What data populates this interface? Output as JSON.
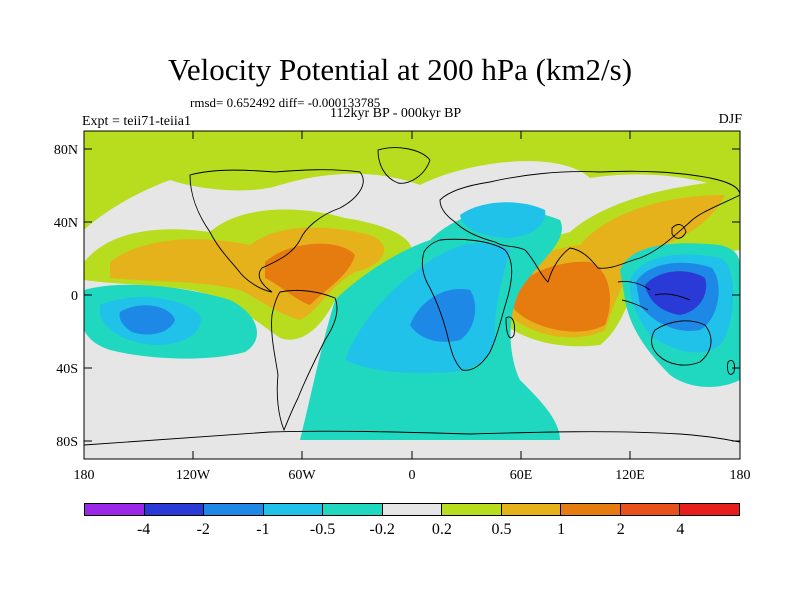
{
  "title": "Velocity Potential at 200 hPa (km2/s)",
  "stats_line": "rmsd= 0.652492 diff= -0.000133785",
  "period": "112kyr BP - 000kyr BP",
  "experiment": "Expt = teii71-teiia1",
  "season": "DJF",
  "lat_labels": [
    "80N",
    "40N",
    "0",
    "40S",
    "80S"
  ],
  "lon_labels": [
    "180",
    "120W",
    "60W",
    "0",
    "60E",
    "120E",
    "180"
  ],
  "colorbar": {
    "colors": [
      "#9a28e6",
      "#2a3ad6",
      "#1e88e6",
      "#20c2ea",
      "#20d8c0",
      "#e6e6e6",
      "#b8dc1e",
      "#e6b21c",
      "#e67c10",
      "#e6521a",
      "#e61e1e"
    ],
    "labels": [
      "-4",
      "-2",
      "-1",
      "-0.5",
      "-0.2",
      "0.2",
      "0.5",
      "1",
      "2",
      "4"
    ]
  }
}
